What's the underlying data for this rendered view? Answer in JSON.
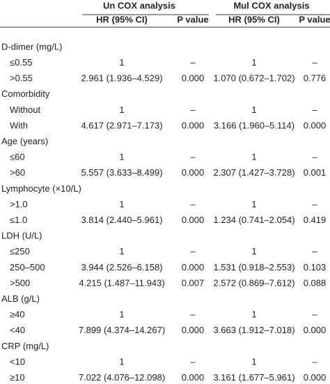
{
  "table": {
    "group_headers": [
      "Un COX analysis",
      "Mul COX analysis"
    ],
    "column_headers": [
      "HR (95% CI)",
      "P value",
      "HR (95% CI)",
      "P value"
    ],
    "rows": [
      [
        "D-dimer (mg/L)"
      ],
      [
        "≤0.55",
        "1",
        "–",
        "1",
        "–"
      ],
      [
        ">0.55",
        "2.961 (1.936–4.529)",
        "0.000",
        "1.070 (0.672–1.702)",
        "0.776"
      ],
      [
        "Comorbidity"
      ],
      [
        "Without",
        "1",
        "–",
        "1",
        "–"
      ],
      [
        "With",
        "4.617 (2.971–7.173)",
        "0.000",
        "3.166 (1.960–5.114)",
        "0.000"
      ],
      [
        "Age (years)"
      ],
      [
        "≤60",
        "1",
        "–",
        "1",
        "–"
      ],
      [
        ">60",
        "5.557 (3.633–8.499)",
        "0.000",
        "2.307 (1.427–3.728)",
        "0.001"
      ],
      [
        "Lymphocyte (×10/L)"
      ],
      [
        ">1.0",
        "1",
        "–",
        "1",
        "–"
      ],
      [
        "≤1.0",
        "3.814 (2.440–5.961)",
        "0.000",
        "1.234 (0.741–2.054)",
        "0.419"
      ],
      [
        "LDH (U/L)"
      ],
      [
        "≤250",
        "1",
        "–",
        "1",
        "–"
      ],
      [
        "250–500",
        "3.944 (2.526–6.158)",
        "0.000",
        "1.531 (0.918–2.553)",
        "0.103"
      ],
      [
        ">500",
        "4.215 (1.487–11.943)",
        "0.007",
        "2.572 (0.869–7.612)",
        "0.088"
      ],
      [
        "ALB (g/L)"
      ],
      [
        "≥40",
        "1",
        "–",
        "1",
        "–"
      ],
      [
        "<40",
        "7.899 (4.374–14.267)",
        "0.000",
        "3.663 (1.912–7.018)",
        "0.000"
      ],
      [
        "CRP (mg/L)"
      ],
      [
        "<10",
        "1",
        "–",
        "1",
        "–"
      ],
      [
        "≥10",
        "7.022 (4.076–12.098)",
        "0.000",
        "3.161 (1.677–5.961)",
        "0.000"
      ]
    ]
  }
}
